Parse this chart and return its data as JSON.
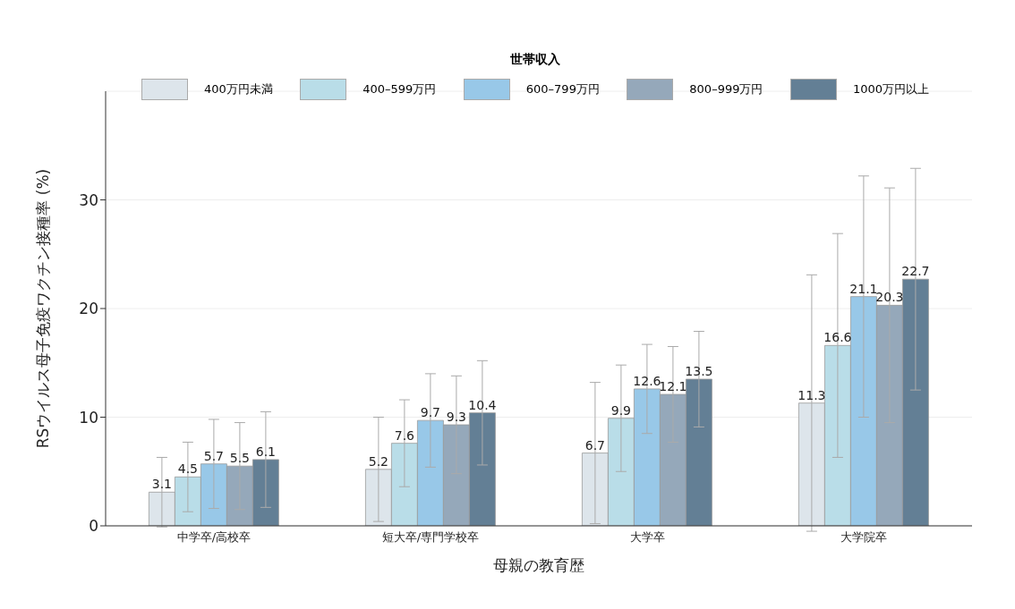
{
  "chart_data": {
    "type": "bar",
    "xlabel": "母親の教育歴",
    "ylabel": "RSウイルス母子免疫ワクチン接種率 (%)",
    "legend_title": "世帯収入",
    "categories": [
      "中学卒/高校卒",
      "短大卒/専門学校卒",
      "大学卒",
      "大学院卒"
    ],
    "series": [
      {
        "name": "400万円未満",
        "color": "#dde5eb",
        "values": [
          3.1,
          5.2,
          6.7,
          11.3
        ],
        "errors": [
          3.2,
          4.8,
          6.5,
          11.8
        ]
      },
      {
        "name": "400–599万円",
        "color": "#b9dde8",
        "values": [
          4.5,
          7.6,
          9.9,
          16.6
        ],
        "errors": [
          3.2,
          4.0,
          4.9,
          10.3
        ]
      },
      {
        "name": "600–799万円",
        "color": "#98c8e8",
        "values": [
          5.7,
          9.7,
          12.6,
          21.1
        ],
        "errors": [
          4.1,
          4.3,
          4.1,
          11.1
        ]
      },
      {
        "name": "800–999万円",
        "color": "#95a8ba",
        "values": [
          5.5,
          9.3,
          12.1,
          20.3
        ],
        "errors": [
          4.0,
          4.5,
          4.4,
          10.8
        ]
      },
      {
        "name": "1000万円以上",
        "color": "#637f95",
        "values": [
          6.1,
          10.4,
          13.5,
          22.7
        ],
        "errors": [
          4.4,
          4.8,
          4.4,
          10.2
        ]
      }
    ],
    "ylim": [
      0,
      40
    ],
    "yticks": [
      0,
      10,
      20,
      30
    ],
    "grid": "y",
    "legend": "top",
    "data_labels": true
  }
}
